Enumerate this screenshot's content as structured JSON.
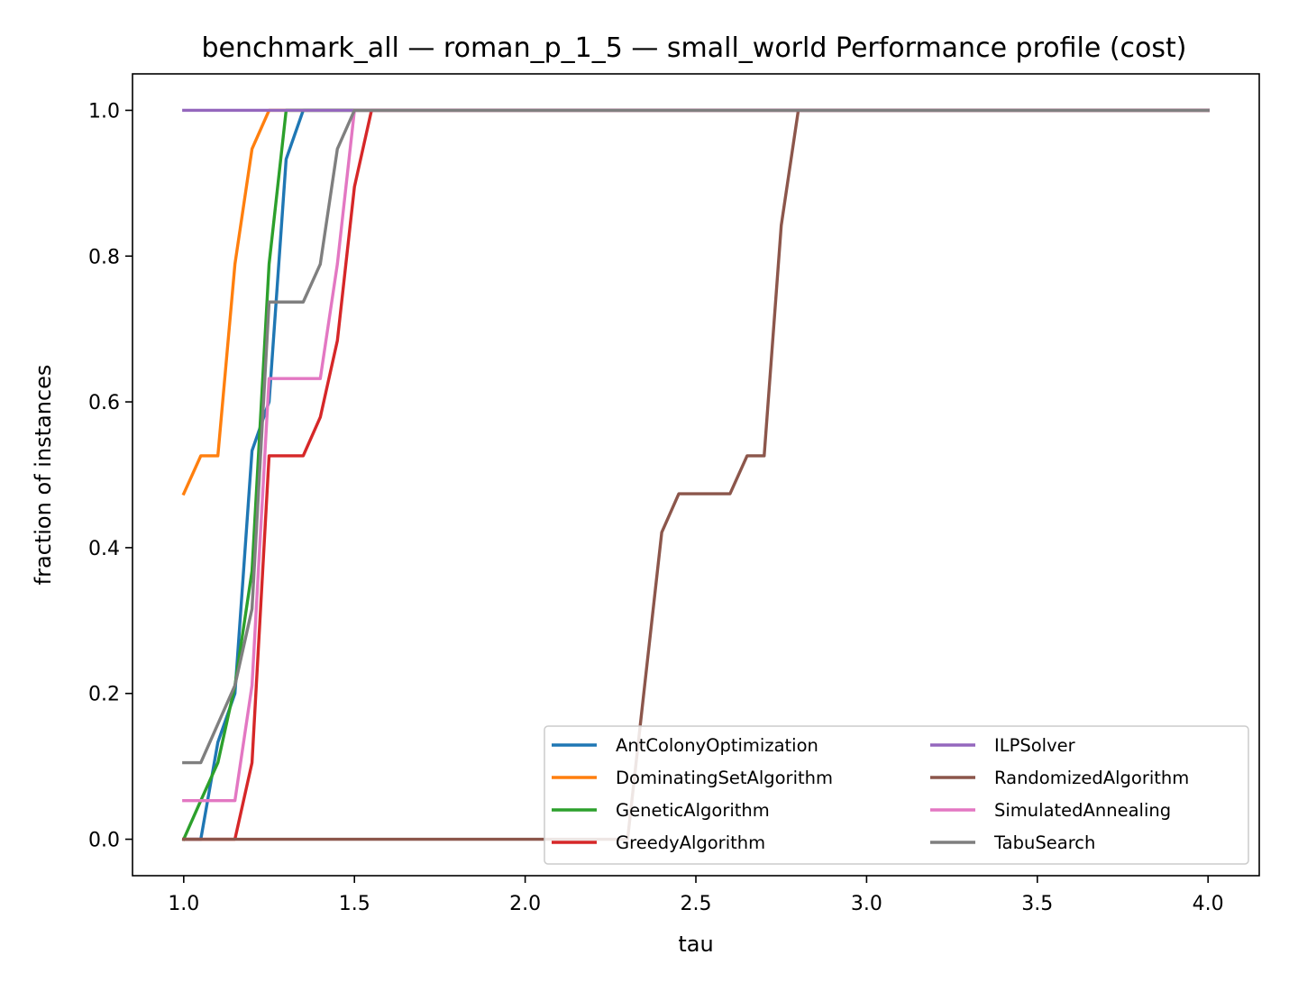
{
  "chart_data": {
    "type": "line",
    "title": "benchmark_all — roman_p_1_5 — small_world Performance profile (cost)",
    "xlabel": "tau",
    "ylabel": "fraction of instances",
    "xlim": [
      0.85,
      4.15
    ],
    "ylim": [
      -0.05,
      1.05
    ],
    "xticks": [
      1.0,
      1.5,
      2.0,
      2.5,
      3.0,
      3.5,
      4.0
    ],
    "xtick_labels": [
      "1.0",
      "1.5",
      "2.0",
      "2.5",
      "3.0",
      "3.5",
      "4.0"
    ],
    "yticks": [
      0.0,
      0.2,
      0.4,
      0.6,
      0.8,
      1.0
    ],
    "ytick_labels": [
      "0.0",
      "0.2",
      "0.4",
      "0.6",
      "0.8",
      "1.0"
    ],
    "grid": false,
    "legend_position": "lower-right",
    "legend_columns": 2,
    "series": [
      {
        "name": "AntColonyOptimization",
        "color": "#1f77b4",
        "x": [
          1.0,
          1.05,
          1.1,
          1.15,
          1.2,
          1.25,
          1.3,
          1.35,
          4.0
        ],
        "y": [
          0.0,
          0.0,
          0.133,
          0.2,
          0.533,
          0.6,
          0.933,
          1.0,
          1.0
        ]
      },
      {
        "name": "DominatingSetAlgorithm",
        "color": "#ff7f0e",
        "x": [
          1.0,
          1.05,
          1.1,
          1.15,
          1.2,
          1.25,
          4.0
        ],
        "y": [
          0.474,
          0.526,
          0.526,
          0.789,
          0.947,
          1.0,
          1.0
        ]
      },
      {
        "name": "GeneticAlgorithm",
        "color": "#2ca02c",
        "x": [
          1.0,
          1.05,
          1.1,
          1.15,
          1.2,
          1.25,
          1.3,
          4.0
        ],
        "y": [
          0.0,
          0.053,
          0.105,
          0.211,
          0.368,
          0.789,
          1.0,
          1.0
        ]
      },
      {
        "name": "GreedyAlgorithm",
        "color": "#d62728",
        "x": [
          1.0,
          1.15,
          1.2,
          1.25,
          1.3,
          1.35,
          1.4,
          1.45,
          1.5,
          1.55,
          4.0
        ],
        "y": [
          0.0,
          0.0,
          0.105,
          0.526,
          0.526,
          0.526,
          0.579,
          0.684,
          0.895,
          1.0,
          1.0
        ]
      },
      {
        "name": "ILPSolver",
        "color": "#9467bd",
        "x": [
          1.0,
          4.0
        ],
        "y": [
          1.0,
          1.0
        ]
      },
      {
        "name": "RandomizedAlgorithm",
        "color": "#8c564b",
        "x": [
          1.0,
          2.3,
          2.35,
          2.4,
          2.45,
          2.5,
          2.55,
          2.6,
          2.65,
          2.7,
          2.75,
          2.8,
          4.0
        ],
        "y": [
          0.0,
          0.0,
          0.211,
          0.421,
          0.474,
          0.474,
          0.474,
          0.474,
          0.526,
          0.526,
          0.842,
          1.0,
          1.0
        ]
      },
      {
        "name": "SimulatedAnnealing",
        "color": "#e377c2",
        "x": [
          1.0,
          1.15,
          1.2,
          1.25,
          1.3,
          1.35,
          1.4,
          1.45,
          1.5,
          4.0
        ],
        "y": [
          0.053,
          0.053,
          0.211,
          0.632,
          0.632,
          0.632,
          0.632,
          0.789,
          1.0,
          1.0
        ]
      },
      {
        "name": "TabuSearch",
        "color": "#7f7f7f",
        "x": [
          1.0,
          1.05,
          1.1,
          1.15,
          1.2,
          1.25,
          1.3,
          1.35,
          1.4,
          1.45,
          1.5,
          4.0
        ],
        "y": [
          0.105,
          0.105,
          0.158,
          0.211,
          0.316,
          0.737,
          0.737,
          0.737,
          0.789,
          0.947,
          1.0,
          1.0
        ]
      }
    ]
  }
}
